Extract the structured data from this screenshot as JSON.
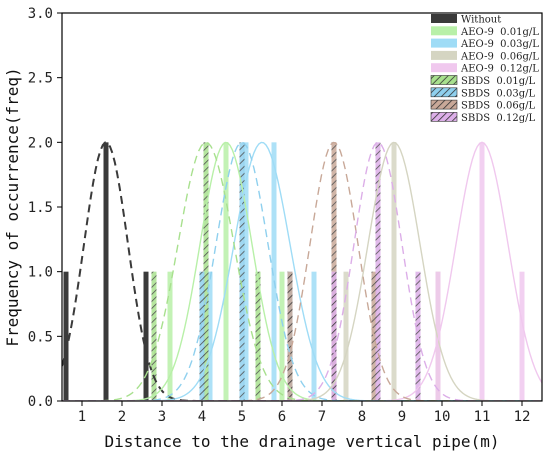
{
  "chart_data": {
    "type": "bar",
    "xlabel": "Distance to the drainage vertical pipe(m)",
    "ylabel": "Frequency of occurrence(freq)",
    "xlim": [
      0.5,
      12.5
    ],
    "ylim": [
      0,
      3.0
    ],
    "xticks": [
      "1",
      "2",
      "3",
      "4",
      "5",
      "6",
      "7",
      "8",
      "9",
      "10",
      "11",
      "12"
    ],
    "yticks": [
      "0.0",
      "0.5",
      "1.0",
      "1.5",
      "2.0",
      "2.5",
      "3.0"
    ],
    "legend_position": "top-right",
    "series": [
      {
        "name": "Without",
        "color": "#3a3a3a",
        "hatch": false,
        "fit": "dashed",
        "bars": [
          {
            "x": 0.6,
            "y": 1
          },
          {
            "x": 1.6,
            "y": 2
          },
          {
            "x": 2.6,
            "y": 1
          }
        ],
        "fit_center": 1.6,
        "fit_sigma": 0.55
      },
      {
        "name": "AEO-9  0.01g/L",
        "color": "#b8f0a8",
        "hatch": false,
        "fit": "solid",
        "bars": [
          {
            "x": 3.2,
            "y": 1
          },
          {
            "x": 4.6,
            "y": 2
          },
          {
            "x": 6.0,
            "y": 1
          }
        ],
        "fit_center": 4.6,
        "fit_sigma": 0.65
      },
      {
        "name": "AEO-9  0.03g/L",
        "color": "#9fdcf6",
        "hatch": false,
        "fit": "solid",
        "bars": [
          {
            "x": 4.2,
            "y": 1
          },
          {
            "x": 5.1,
            "y": 2
          },
          {
            "x": 5.8,
            "y": 2
          },
          {
            "x": 6.8,
            "y": 1
          }
        ],
        "fit_center": 5.5,
        "fit_sigma": 0.7
      },
      {
        "name": "AEO-9  0.06g/L",
        "color": "#d5d5c2",
        "hatch": false,
        "fit": "solid",
        "bars": [
          {
            "x": 7.6,
            "y": 1
          },
          {
            "x": 8.8,
            "y": 2
          },
          {
            "x": 9.9,
            "y": 1
          }
        ],
        "fit_center": 8.8,
        "fit_sigma": 0.65
      },
      {
        "name": "AEO-9  0.12g/L",
        "color": "#f0c8ee",
        "hatch": false,
        "fit": "solid",
        "bars": [
          {
            "x": 9.9,
            "y": 1
          },
          {
            "x": 11.0,
            "y": 2
          },
          {
            "x": 12.0,
            "y": 1
          }
        ],
        "fit_center": 11.0,
        "fit_sigma": 0.65
      },
      {
        "name": "SBDS  0.01g/L",
        "color": "#a8e08e",
        "hatch": true,
        "fit": "dashed",
        "bars": [
          {
            "x": 2.8,
            "y": 1
          },
          {
            "x": 4.1,
            "y": 2
          },
          {
            "x": 5.4,
            "y": 1
          }
        ],
        "fit_center": 4.1,
        "fit_sigma": 0.7
      },
      {
        "name": "SBDS  0.03g/L",
        "color": "#8fd0ee",
        "hatch": true,
        "fit": "dashed",
        "bars": [
          {
            "x": 4.0,
            "y": 1
          },
          {
            "x": 5.0,
            "y": 2
          },
          {
            "x": 6.2,
            "y": 1
          }
        ],
        "fit_center": 5.0,
        "fit_sigma": 0.65
      },
      {
        "name": "SBDS  0.06g/L",
        "color": "#c8a898",
        "hatch": true,
        "fit": "dashed",
        "bars": [
          {
            "x": 6.2,
            "y": 1
          },
          {
            "x": 7.3,
            "y": 2
          },
          {
            "x": 8.3,
            "y": 1
          }
        ],
        "fit_center": 7.3,
        "fit_sigma": 0.6
      },
      {
        "name": "SBDS  0.12g/L",
        "color": "#dcaee8",
        "hatch": true,
        "fit": "dashed",
        "bars": [
          {
            "x": 7.3,
            "y": 1
          },
          {
            "x": 8.4,
            "y": 2
          },
          {
            "x": 9.4,
            "y": 1
          }
        ],
        "fit_center": 8.4,
        "fit_sigma": 0.6
      }
    ]
  }
}
